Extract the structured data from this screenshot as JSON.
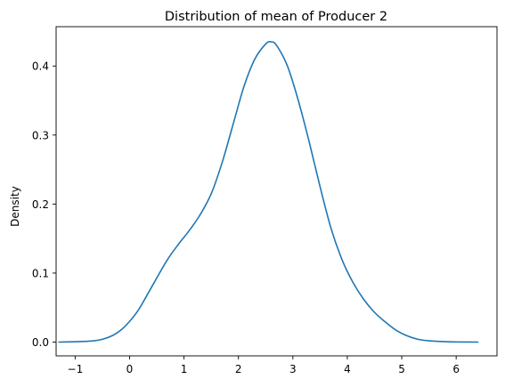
{
  "chart_data": {
    "type": "line",
    "title": "Distribution of mean of Producer 2",
    "xlabel": "",
    "ylabel": "Density",
    "xlim": [
      -1.35,
      6.75
    ],
    "ylim": [
      -0.02,
      0.457
    ],
    "xticks": [
      -1,
      0,
      1,
      2,
      3,
      4,
      5,
      6
    ],
    "xtick_labels": [
      "−1",
      "0",
      "1",
      "2",
      "3",
      "4",
      "5",
      "6"
    ],
    "yticks": [
      0.0,
      0.1,
      0.2,
      0.3,
      0.4
    ],
    "ytick_labels": [
      "0.0",
      "0.1",
      "0.2",
      "0.3",
      "0.4"
    ],
    "grid": false,
    "legend": "none",
    "series": [
      {
        "color": "#1f77b4",
        "x": [
          -1.3,
          -1.0,
          -0.7,
          -0.5,
          -0.3,
          -0.15,
          0.0,
          0.15,
          0.3,
          0.5,
          0.7,
          0.9,
          1.1,
          1.3,
          1.5,
          1.7,
          1.9,
          2.1,
          2.3,
          2.5,
          2.6,
          2.7,
          2.9,
          3.1,
          3.3,
          3.5,
          3.7,
          3.9,
          4.1,
          4.3,
          4.5,
          4.7,
          4.9,
          5.1,
          5.3,
          5.5,
          5.8,
          6.1,
          6.4
        ],
        "y": [
          0.0,
          0.0005,
          0.0015,
          0.004,
          0.01,
          0.018,
          0.03,
          0.045,
          0.065,
          0.093,
          0.12,
          0.142,
          0.162,
          0.185,
          0.215,
          0.26,
          0.315,
          0.37,
          0.41,
          0.432,
          0.435,
          0.43,
          0.4,
          0.35,
          0.29,
          0.225,
          0.165,
          0.12,
          0.087,
          0.062,
          0.043,
          0.029,
          0.017,
          0.009,
          0.004,
          0.0018,
          0.0005,
          0.0001,
          0.0
        ]
      }
    ]
  }
}
